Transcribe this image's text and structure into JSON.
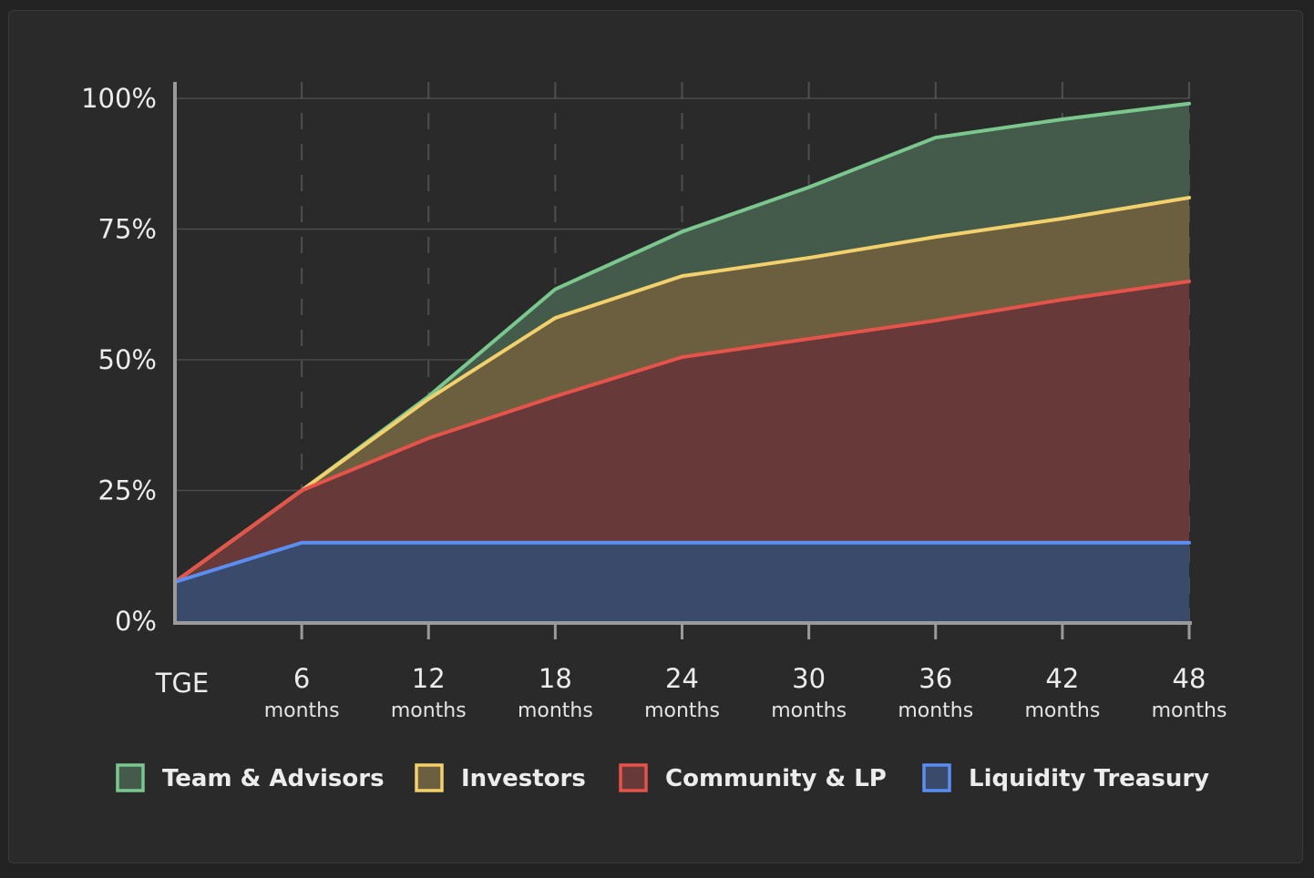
{
  "chart_data": {
    "type": "area",
    "stacked": true,
    "cumulative": true,
    "title": "",
    "xlabel": "",
    "ylabel": "",
    "x": [
      0,
      6,
      12,
      18,
      24,
      30,
      36,
      42,
      48
    ],
    "x_tick_labels": [
      {
        "num": "TGE",
        "unit": ""
      },
      {
        "num": "6",
        "unit": "months"
      },
      {
        "num": "12",
        "unit": "months"
      },
      {
        "num": "18",
        "unit": "months"
      },
      {
        "num": "24",
        "unit": "months"
      },
      {
        "num": "30",
        "unit": "months"
      },
      {
        "num": "36",
        "unit": "months"
      },
      {
        "num": "42",
        "unit": "months"
      },
      {
        "num": "48",
        "unit": "months"
      }
    ],
    "y_ticks": [
      0,
      25,
      50,
      75,
      100
    ],
    "y_tick_labels": [
      "0%",
      "25%",
      "50%",
      "75%",
      "100%"
    ],
    "ylim": [
      0,
      100
    ],
    "grid": true,
    "legend_position": "bottom",
    "series": [
      {
        "name": "Liquidity Treasury",
        "color": "#5b8ef0",
        "fill": "#3a4a6a",
        "values": [
          7.5,
          15,
          15,
          15,
          15,
          15,
          15,
          15,
          15
        ]
      },
      {
        "name": "Community & LP",
        "color": "#e5534b",
        "fill": "#673939",
        "values": [
          7.5,
          25,
          35,
          43,
          50.5,
          54,
          57.5,
          61.5,
          65
        ]
      },
      {
        "name": "Investors",
        "color": "#f2d06b",
        "fill": "#6b5f40",
        "values": [
          7.5,
          25,
          42.5,
          58,
          66,
          69.5,
          73.5,
          77,
          81
        ]
      },
      {
        "name": "Team & Advisors",
        "color": "#7bc88f",
        "fill": "#445a4a",
        "values": [
          7.5,
          25,
          43,
          63.5,
          74.5,
          83,
          92.5,
          96,
          99
        ]
      }
    ]
  }
}
